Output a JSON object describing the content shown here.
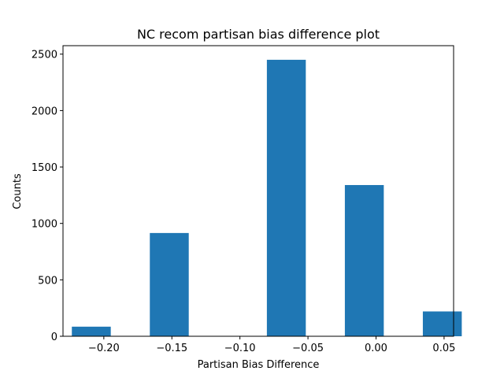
{
  "chart_data": {
    "type": "bar",
    "title": "NC recom partisan bias difference plot",
    "xlabel": "Partisan Bias Difference",
    "ylabel": "Counts",
    "xlim": [
      -0.23,
      0.057
    ],
    "ylim": [
      0,
      2575
    ],
    "x_ticks": [
      -0.2,
      -0.15,
      -0.1,
      -0.05,
      0.0,
      0.05
    ],
    "x_tick_labels": [
      "−0.20",
      "−0.15",
      "−0.10",
      "−0.05",
      "0.00",
      "0.05"
    ],
    "y_ticks": [
      0,
      500,
      1000,
      1500,
      2000,
      2500
    ],
    "y_tick_labels": [
      "0",
      "500",
      "1000",
      "1500",
      "2000",
      "2500"
    ],
    "bars": [
      {
        "x0": -0.2235,
        "x1": -0.1949,
        "value": 85
      },
      {
        "x0": -0.1662,
        "x1": -0.1376,
        "value": 915
      },
      {
        "x0": -0.0802,
        "x1": -0.0516,
        "value": 2450
      },
      {
        "x0": -0.0229,
        "x1": 0.0057,
        "value": 1340
      },
      {
        "x0": 0.0344,
        "x1": 0.063,
        "value": 220
      }
    ],
    "bar_color": "#1f77b4",
    "grid": false,
    "legend": "none"
  }
}
